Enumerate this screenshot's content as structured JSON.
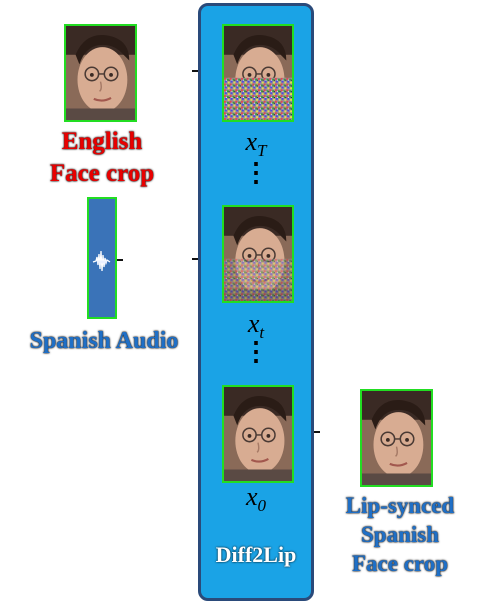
{
  "input": {
    "face_label_line1": "English",
    "face_label_line2": "Face crop",
    "audio_label": "Spanish Audio"
  },
  "model": {
    "name": "Diff2Lip",
    "steps": [
      {
        "symbol": "x",
        "subscript": "T"
      },
      {
        "symbol": "x",
        "subscript": "t"
      },
      {
        "symbol": "x",
        "subscript": "0"
      }
    ],
    "dots": "⋮"
  },
  "output": {
    "label_line1": "Lip-synced",
    "label_line2": "Spanish",
    "label_line3": "Face crop"
  },
  "colors": {
    "model_fill": "#1aa3e6",
    "frame_border": "#22dd22",
    "input_label": "#e80000",
    "audio_output_label": "#1f6fc6",
    "audio_panel": "#3a73b8"
  }
}
